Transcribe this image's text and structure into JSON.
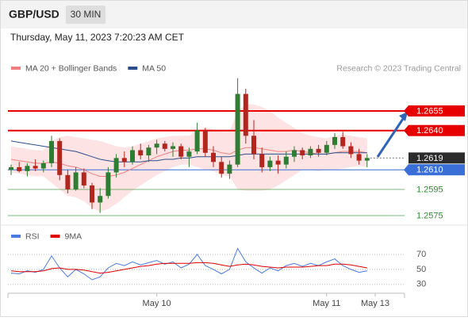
{
  "header": {
    "symbol": "GBP/USD",
    "timeframe": "30 MIN",
    "datetime": "Thursday, May 11, 2023 7:20:23 AM CET"
  },
  "chart_data": [
    {
      "type": "candlestick",
      "credit": "Research © 2023 Trading Central",
      "up_color": "#2f7d32",
      "down_color": "#b3261e",
      "categories": [
        null,
        null,
        null,
        null,
        null,
        null,
        null,
        null,
        null,
        null,
        null,
        null,
        null,
        null,
        null,
        null,
        null,
        null,
        "May 10",
        null,
        null,
        null,
        null,
        null,
        null,
        null,
        null,
        null,
        null,
        null,
        null,
        null,
        null,
        null,
        null,
        null,
        null,
        null,
        null,
        "May 11",
        null,
        null,
        null,
        null,
        null,
        "May 13"
      ],
      "candles": [
        [
          1.261,
          1.2614,
          1.2606,
          1.2612
        ],
        [
          1.2612,
          1.2616,
          1.2608,
          1.2609
        ],
        [
          1.2609,
          1.2615,
          1.2605,
          1.2613
        ],
        [
          1.2613,
          1.2618,
          1.2609,
          1.2611
        ],
        [
          1.2611,
          1.2617,
          1.2608,
          1.2615
        ],
        [
          1.2615,
          1.2636,
          1.2612,
          1.2632
        ],
        [
          1.2632,
          1.2634,
          1.2602,
          1.2606
        ],
        [
          1.2606,
          1.261,
          1.2592,
          1.2595
        ],
        [
          1.2595,
          1.2612,
          1.2594,
          1.2608
        ],
        [
          1.2608,
          1.2611,
          1.2596,
          1.2598
        ],
        [
          1.2598,
          1.26,
          1.258,
          1.2585
        ],
        [
          1.2585,
          1.2596,
          1.2577,
          1.259
        ],
        [
          1.259,
          1.2612,
          1.2588,
          1.2608
        ],
        [
          1.2608,
          1.2622,
          1.2604,
          1.2619
        ],
        [
          1.2619,
          1.2624,
          1.2612,
          1.2616
        ],
        [
          1.2616,
          1.2628,
          1.2614,
          1.2625
        ],
        [
          1.2625,
          1.263,
          1.2618,
          1.2621
        ],
        [
          1.2621,
          1.2629,
          1.2616,
          1.2627
        ],
        [
          1.2627,
          1.2633,
          1.2622,
          1.263
        ],
        [
          1.263,
          1.2632,
          1.2624,
          1.2626
        ],
        [
          1.2626,
          1.2631,
          1.262,
          1.2628
        ],
        [
          1.2628,
          1.263,
          1.2618,
          1.262
        ],
        [
          1.262,
          1.2627,
          1.2612,
          1.2624
        ],
        [
          1.2624,
          1.2646,
          1.2622,
          1.264
        ],
        [
          1.264,
          1.2642,
          1.262,
          1.2623
        ],
        [
          1.2623,
          1.2628,
          1.2612,
          1.2616
        ],
        [
          1.2616,
          1.262,
          1.2604,
          1.2607
        ],
        [
          1.2607,
          1.2617,
          1.2603,
          1.2614
        ],
        [
          1.2614,
          1.268,
          1.2612,
          1.2668
        ],
        [
          1.2668,
          1.2672,
          1.263,
          1.2636
        ],
        [
          1.2636,
          1.2648,
          1.2618,
          1.2622
        ],
        [
          1.2622,
          1.2627,
          1.2608,
          1.2612
        ],
        [
          1.2612,
          1.262,
          1.2609,
          1.2617
        ],
        [
          1.2617,
          1.2621,
          1.2607,
          1.2614
        ],
        [
          1.2614,
          1.2624,
          1.2611,
          1.262
        ],
        [
          1.262,
          1.2628,
          1.2616,
          1.2625
        ],
        [
          1.2625,
          1.2627,
          1.2618,
          1.2621
        ],
        [
          1.2621,
          1.2628,
          1.2619,
          1.2626
        ],
        [
          1.2626,
          1.2629,
          1.262,
          1.2623
        ],
        [
          1.2623,
          1.2632,
          1.2621,
          1.2629
        ],
        [
          1.2629,
          1.2638,
          1.2626,
          1.2635
        ],
        [
          1.2635,
          1.2639,
          1.2626,
          1.2628
        ],
        [
          1.2628,
          1.2631,
          1.2619,
          1.2622
        ],
        [
          1.2622,
          1.2626,
          1.2614,
          1.2617
        ],
        [
          1.2617,
          1.2622,
          1.2612,
          1.2619
        ],
        null
      ],
      "series": [
        {
          "name": "MA 20 + Bollinger Bands",
          "color": "#f08080",
          "band_color": "#fde3e3",
          "values": [
            1.2618,
            1.2617,
            1.2616,
            1.2615,
            1.2615,
            1.2616,
            1.2615,
            1.2613,
            1.2612,
            1.261,
            1.2607,
            1.2605,
            1.2605,
            1.2606,
            1.2608,
            1.2611,
            1.2614,
            1.2617,
            1.262,
            1.2622,
            1.2624,
            1.2625,
            1.2625,
            1.2626,
            1.2626,
            1.2625,
            1.2623,
            1.2622,
            1.2625,
            1.2627,
            1.2627,
            1.2626,
            1.2625,
            1.2624,
            1.2624,
            1.2625,
            1.2624,
            1.2623,
            1.2622,
            1.2622,
            1.2623,
            1.2624,
            1.2624,
            1.2624,
            1.2623,
            null
          ],
          "upper": [
            1.2628,
            1.2627,
            1.2626,
            1.2625,
            1.2625,
            1.2632,
            1.2635,
            1.2636,
            1.2635,
            1.2634,
            1.2633,
            1.2632,
            1.263,
            1.2628,
            1.2627,
            1.2628,
            1.263,
            1.2632,
            1.2634,
            1.2635,
            1.2636,
            1.2636,
            1.2636,
            1.264,
            1.2642,
            1.2641,
            1.264,
            1.2639,
            1.2655,
            1.266,
            1.266,
            1.2658,
            1.2655,
            1.265,
            1.2646,
            1.2642,
            1.2638,
            1.2636,
            1.2635,
            1.2634,
            1.2636,
            1.2637,
            1.2636,
            1.2635,
            1.2634,
            null
          ],
          "lower": [
            1.2608,
            1.2607,
            1.2606,
            1.2605,
            1.2605,
            1.26,
            1.2595,
            1.259,
            1.2589,
            1.2586,
            1.2581,
            1.2578,
            1.258,
            1.2584,
            1.2589,
            1.2594,
            1.2598,
            1.2602,
            1.2606,
            1.2609,
            1.2612,
            1.2614,
            1.2614,
            1.2612,
            1.261,
            1.2609,
            1.2606,
            1.2605,
            1.2595,
            1.2594,
            1.2594,
            1.2594,
            1.2595,
            1.2598,
            1.2602,
            1.2606,
            1.261,
            1.261,
            1.2609,
            1.261,
            1.261,
            1.2611,
            1.2612,
            1.2613,
            1.2612,
            null
          ]
        },
        {
          "name": "MA 50",
          "color": "#2c4f8c",
          "values": [
            1.2632,
            1.2631,
            1.263,
            1.2629,
            1.2628,
            1.2627,
            1.2626,
            1.2625,
            1.2624,
            1.2622,
            1.262,
            1.2618,
            1.2617,
            1.2616,
            1.2616,
            1.2616,
            1.2616,
            1.2617,
            1.2617,
            1.2618,
            1.2618,
            1.2619,
            1.2619,
            1.262,
            1.262,
            1.262,
            1.262,
            1.262,
            1.2621,
            1.2622,
            1.2622,
            1.2622,
            1.2622,
            1.2622,
            1.2622,
            1.2622,
            1.2622,
            1.2622,
            1.2622,
            1.2622,
            1.2623,
            1.2623,
            1.2623,
            1.2623,
            1.2623,
            null
          ]
        }
      ],
      "levels": [
        {
          "value": 1.2655,
          "color": "#e60000",
          "style": "box"
        },
        {
          "value": 1.264,
          "label": "1.2640",
          "color": "#e60000",
          "style": "box"
        },
        {
          "value": 1.261,
          "label": "1.2610",
          "color": "#3a6fd8",
          "style": "box"
        },
        {
          "value": 1.2595,
          "color": "#2e8b2e",
          "style": "text"
        },
        {
          "value": 1.2575,
          "color": "#2e8b2e",
          "style": "text"
        }
      ],
      "last_price": 1.2619,
      "ylim": [
        1.25671,
        1.26974
      ]
    },
    {
      "type": "line",
      "series": [
        {
          "name": "RSI",
          "color": "#4a7be0",
          "values": [
            45,
            44,
            48,
            46,
            50,
            68,
            52,
            40,
            50,
            44,
            36,
            40,
            52,
            58,
            55,
            60,
            56,
            59,
            62,
            57,
            60,
            52,
            57,
            70,
            55,
            50,
            44,
            50,
            78,
            60,
            52,
            45,
            52,
            48,
            55,
            58,
            54,
            58,
            55,
            60,
            64,
            55,
            50,
            46,
            48,
            null
          ]
        },
        {
          "name": "9MA",
          "color": "#e00000",
          "values": [
            48,
            47,
            47,
            47,
            48,
            51,
            52,
            50,
            50,
            49,
            47,
            45,
            46,
            48,
            50,
            52,
            54,
            55,
            57,
            58,
            58,
            58,
            58,
            59,
            59,
            58,
            56,
            54,
            56,
            57,
            56,
            54,
            53,
            52,
            53,
            53,
            53,
            54,
            55,
            55,
            57,
            57,
            56,
            54,
            52,
            null
          ]
        }
      ],
      "ylim": [
        18,
        87
      ],
      "yticks": [
        30,
        50,
        70
      ],
      "grid": true
    }
  ]
}
